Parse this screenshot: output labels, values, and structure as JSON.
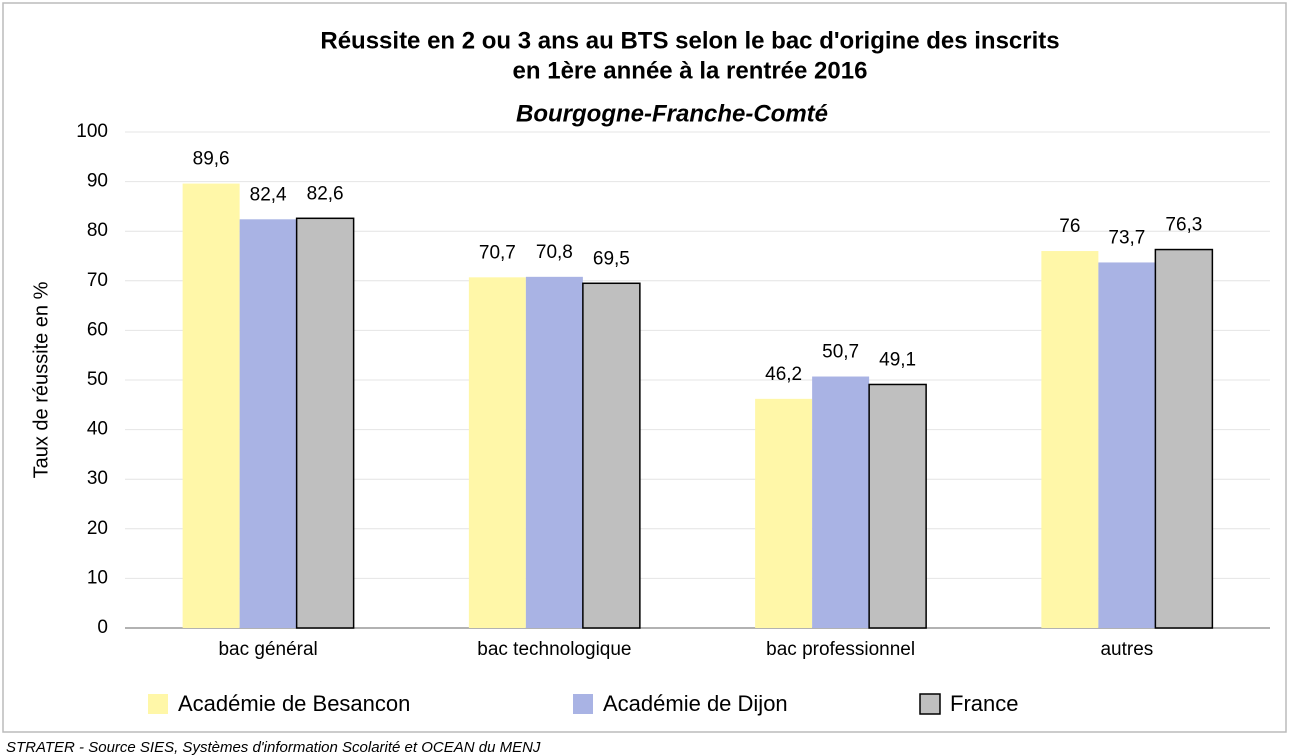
{
  "chart_data": {
    "type": "bar",
    "title": [
      "Réussite en 2 ou 3 ans au BTS selon le bac d'origine des inscrits",
      "en 1ère année à la rentrée 2016"
    ],
    "subtitle": "Bourgogne-Franche-Comté",
    "y_label": "Taux de réussite en %",
    "source": "STRATER - Source SIES, Systèmes d'information Scolarité et OCEAN du MENJ",
    "categories": [
      "bac général",
      "bac technologique",
      "bac professionnel",
      "autres"
    ],
    "series": [
      {
        "name": "Académie de Besancon",
        "color": "#fff7a8",
        "values": [
          89.6,
          70.7,
          46.2,
          76
        ],
        "value_labels": [
          "89,6",
          "70,7",
          "46,2",
          "76"
        ]
      },
      {
        "name": "Académie de Dijon",
        "color": "#a9b3e4",
        "values": [
          82.4,
          70.8,
          50.7,
          73.7
        ],
        "value_labels": [
          "82,4",
          "70,8",
          "50,7",
          "73,7"
        ]
      },
      {
        "name": "France",
        "color": "#bfbfbf",
        "edgecolor": "#000000",
        "values": [
          82.6,
          69.5,
          49.1,
          76.3
        ],
        "value_labels": [
          "82,6",
          "69,5",
          "49,1",
          "76,3"
        ]
      }
    ],
    "ylim": [
      0,
      100
    ],
    "yticks": [
      0,
      10,
      20,
      30,
      40,
      50,
      60,
      70,
      80,
      90,
      100
    ],
    "grid": true,
    "legend": "bottom"
  }
}
